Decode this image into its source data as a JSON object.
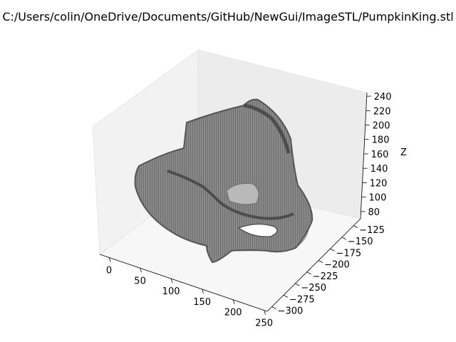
{
  "chart_data": {
    "type": "mesh3d",
    "title": "C:/Users/colin/OneDrive/Documents/GitHub/NewGui/ImageSTL/PumpkinKing.stl",
    "xlabel": "",
    "ylabel": "",
    "zlabel": "Z",
    "x_ticks": [
      "0",
      "50",
      "100",
      "150",
      "200",
      "250"
    ],
    "y_ticks": [
      "−125",
      "−150",
      "−175",
      "−200",
      "−225",
      "−250",
      "−275",
      "−300"
    ],
    "z_ticks": [
      "80",
      "100",
      "120",
      "140",
      "160",
      "180",
      "200",
      "220",
      "240"
    ],
    "xlim": [
      -15,
      255
    ],
    "ylim": [
      -310,
      -110
    ],
    "zlim": [
      70,
      245
    ],
    "grid": false,
    "mesh_color": "#6e6e6e",
    "mesh_edge_color": "#555555",
    "mesh_light_color": "#d0d0d0",
    "pane_color": "#f2f2f2"
  }
}
